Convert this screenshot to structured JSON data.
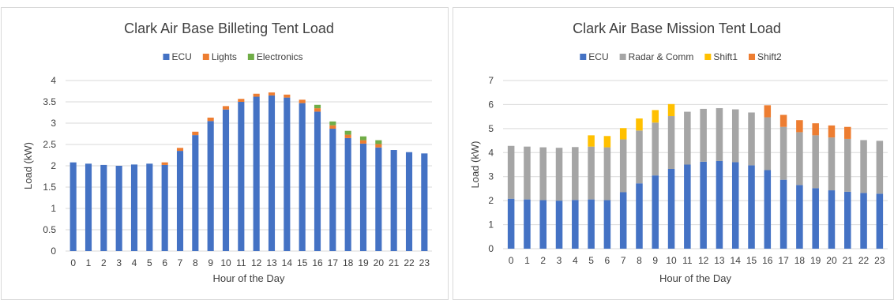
{
  "colors": {
    "ECU": "#4472c4",
    "Lights": "#ed7d31",
    "Electronics": "#70ad47",
    "Radar & Comm": "#a5a5a5",
    "Shift1": "#ffc000",
    "Shift2": "#ed7d31",
    "grid": "#d9d9d9",
    "border": "#d9d9d9"
  },
  "chart_data": [
    {
      "type": "bar",
      "stacked": true,
      "title": "Clark Air Base Billeting Tent Load",
      "xlabel": "Hour of the Day",
      "ylabel": "Load (kW)",
      "ylim": [
        0,
        4
      ],
      "yticks": [
        0,
        0.5,
        1,
        1.5,
        2,
        2.5,
        3,
        3.5,
        4
      ],
      "ytick_labels": [
        "0",
        "0.5",
        "1",
        "1.5",
        "2",
        "2.5",
        "3",
        "3.5",
        "4"
      ],
      "grid": true,
      "legend_position": "top",
      "categories": [
        "0",
        "1",
        "2",
        "3",
        "4",
        "5",
        "6",
        "7",
        "8",
        "9",
        "10",
        "11",
        "12",
        "13",
        "14",
        "15",
        "16",
        "17",
        "18",
        "19",
        "20",
        "21",
        "22",
        "23"
      ],
      "series": [
        {
          "name": "ECU",
          "values": [
            2.08,
            2.05,
            2.02,
            2.0,
            2.03,
            2.05,
            2.02,
            2.35,
            2.72,
            3.05,
            3.32,
            3.5,
            3.62,
            3.65,
            3.6,
            3.47,
            3.27,
            2.87,
            2.65,
            2.52,
            2.43,
            2.37,
            2.32,
            2.29
          ]
        },
        {
          "name": "Lights",
          "values": [
            0,
            0,
            0,
            0,
            0,
            0,
            0.06,
            0.07,
            0.08,
            0.08,
            0.08,
            0.07,
            0.07,
            0.07,
            0.07,
            0.08,
            0.08,
            0.08,
            0.08,
            0.08,
            0.08,
            0,
            0,
            0
          ]
        },
        {
          "name": "Electronics",
          "values": [
            0,
            0,
            0,
            0,
            0,
            0,
            0,
            0,
            0,
            0,
            0,
            0,
            0,
            0,
            0,
            0,
            0.08,
            0.09,
            0.09,
            0.09,
            0.09,
            0,
            0,
            0
          ]
        }
      ]
    },
    {
      "type": "bar",
      "stacked": true,
      "title": "Clark Air Base Mission Tent Load",
      "xlabel": "Hour of the Day",
      "ylabel": "Load (kW)",
      "ylim": [
        0,
        7
      ],
      "yticks": [
        0,
        1,
        2,
        3,
        4,
        5,
        6,
        7
      ],
      "ytick_labels": [
        "0",
        "1",
        "2",
        "3",
        "4",
        "5",
        "6",
        "7"
      ],
      "grid": true,
      "legend_position": "top",
      "categories": [
        "0",
        "1",
        "2",
        "3",
        "4",
        "5",
        "6",
        "7",
        "8",
        "9",
        "10",
        "11",
        "12",
        "13",
        "14",
        "15",
        "16",
        "17",
        "18",
        "19",
        "20",
        "21",
        "22",
        "23"
      ],
      "series": [
        {
          "name": "ECU",
          "values": [
            2.08,
            2.05,
            2.02,
            2.0,
            2.03,
            2.05,
            2.02,
            2.35,
            2.72,
            3.05,
            3.32,
            3.5,
            3.62,
            3.65,
            3.6,
            3.47,
            3.27,
            2.87,
            2.65,
            2.52,
            2.43,
            2.37,
            2.32,
            2.29
          ]
        },
        {
          "name": "Radar & Comm",
          "values": [
            2.2,
            2.2,
            2.2,
            2.2,
            2.2,
            2.2,
            2.2,
            2.2,
            2.2,
            2.2,
            2.2,
            2.2,
            2.2,
            2.2,
            2.2,
            2.2,
            2.2,
            2.2,
            2.2,
            2.2,
            2.2,
            2.2,
            2.2,
            2.2
          ]
        },
        {
          "name": "Shift1",
          "values": [
            0,
            0,
            0,
            0,
            0,
            0.47,
            0.47,
            0.47,
            0.5,
            0.52,
            0.5,
            0,
            0,
            0,
            0,
            0,
            0,
            0,
            0,
            0,
            0,
            0,
            0,
            0
          ]
        },
        {
          "name": "Shift2",
          "values": [
            0,
            0,
            0,
            0,
            0,
            0,
            0,
            0,
            0,
            0,
            0,
            0,
            0,
            0,
            0,
            0,
            0.5,
            0.5,
            0.5,
            0.5,
            0.5,
            0.5,
            0,
            0
          ]
        }
      ]
    }
  ]
}
